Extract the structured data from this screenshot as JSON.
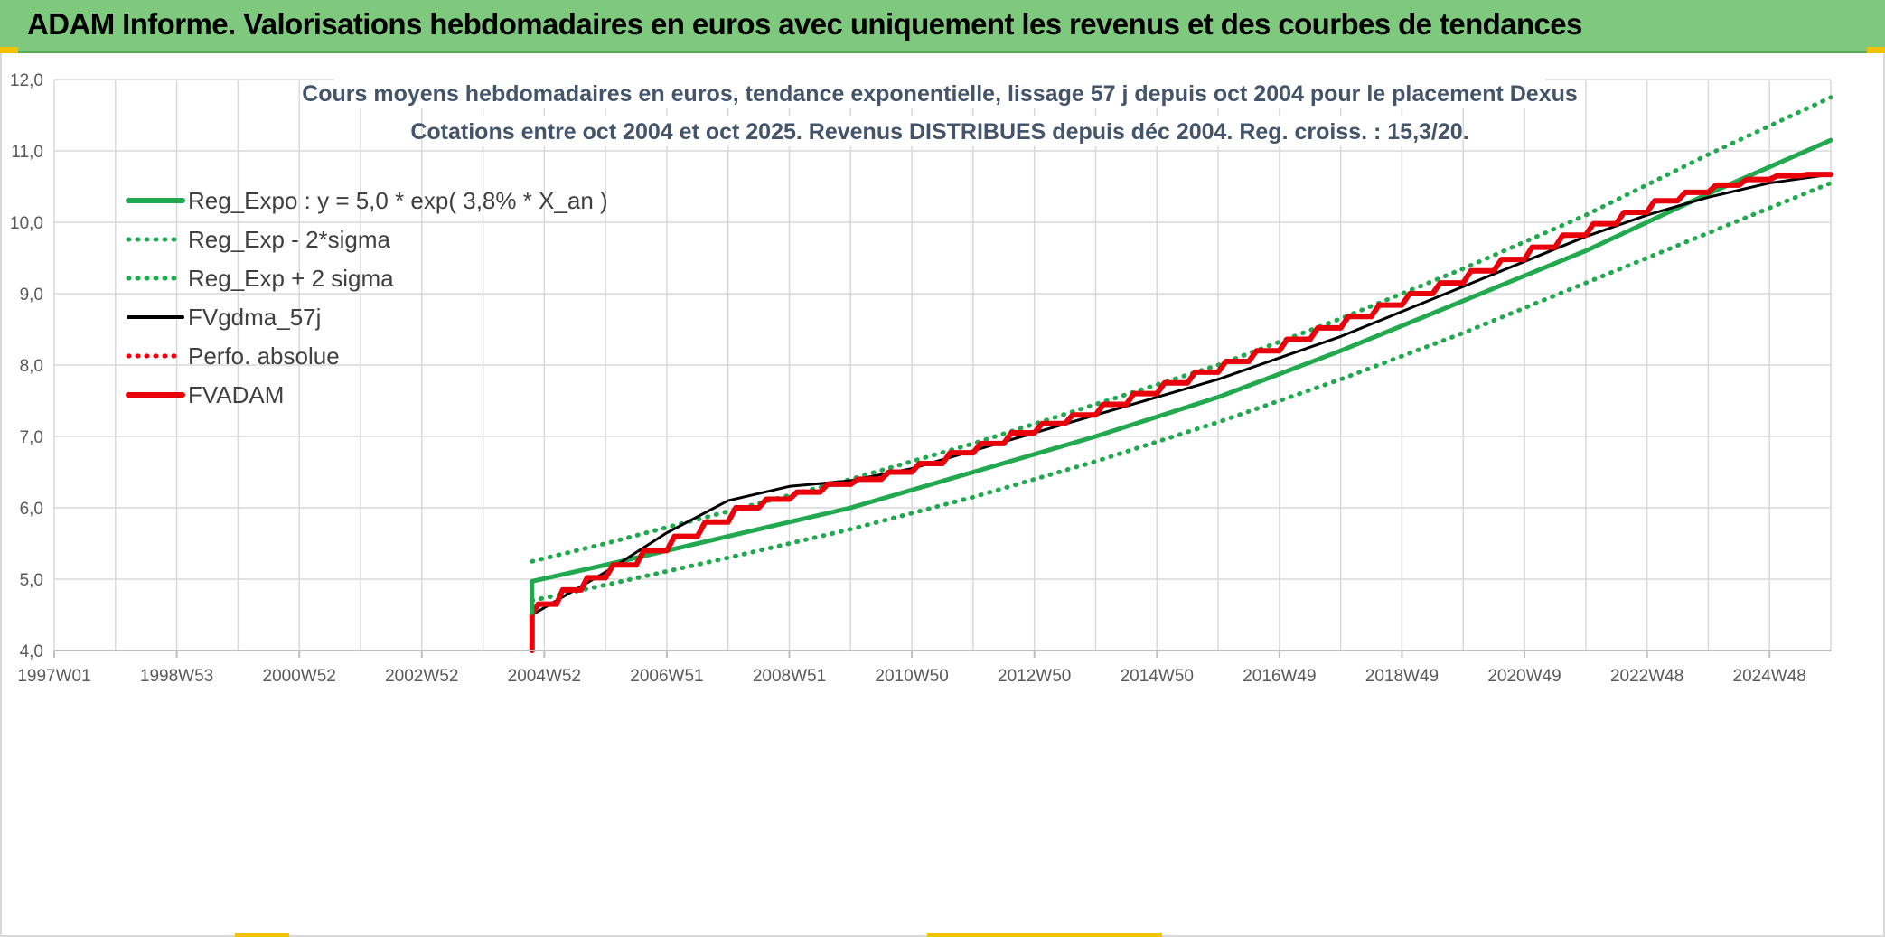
{
  "banner": {
    "title": "ADAM Informe. Valorisations hebdomadaires en euros avec uniquement les revenus et des courbes de tendances"
  },
  "colors": {
    "banner_bg": "#7fc97f",
    "reg_expo": "#22a84f",
    "fvgdma": "#000000",
    "fvadam": "#e8000b",
    "perfo": "#e8000b",
    "grid": "#d9d9d9",
    "title": "#44546a"
  },
  "chart_data": {
    "type": "line",
    "title_line1": "Cours moyens hebdomadaires en euros, tendance exponentielle, lissage 57 j depuis oct 2004 pour le placement Dexus",
    "title_line2": "Cotations entre oct 2004 et oct 2025. Revenus DISTRIBUES depuis déc 2004. Reg. croiss. : 15,3/20.",
    "xlabel": "",
    "ylabel": "",
    "ylim": [
      4.0,
      12.0
    ],
    "xlim": [
      1997.0,
      2026.0
    ],
    "y_ticks": [
      "4,0",
      "5,0",
      "6,0",
      "7,0",
      "8,0",
      "9,0",
      "10,0",
      "11,0",
      "12,0"
    ],
    "x_ticks": [
      "1997W01",
      "1998W53",
      "2000W52",
      "2002W52",
      "2004W52",
      "2006W51",
      "2008W51",
      "2010W50",
      "2012W50",
      "2014W50",
      "2016W49",
      "2018W49",
      "2020W49",
      "2022W48",
      "2024W48"
    ],
    "grid": true,
    "legend_position": "top-left",
    "series": [
      {
        "name": "Reg_Expo : y = 5,0 * exp( 3,8% *  X_an )",
        "style": "solid",
        "color": "#22a84f",
        "x": [
          2004.8,
          2006.0,
          2008.0,
          2010.0,
          2012.0,
          2014.0,
          2016.0,
          2018.0,
          2020.0,
          2022.0,
          2024.0,
          2026.0
        ],
        "y": [
          4.97,
          5.2,
          5.6,
          6.0,
          6.5,
          7.0,
          7.55,
          8.2,
          8.9,
          9.6,
          10.4,
          11.15
        ]
      },
      {
        "name": "Reg_Exp - 2*sigma",
        "style": "dotted",
        "color": "#22a84f",
        "x": [
          2004.8,
          2006.0,
          2008.0,
          2010.0,
          2012.0,
          2014.0,
          2016.0,
          2018.0,
          2020.0,
          2022.0,
          2024.0,
          2026.0
        ],
        "y": [
          4.7,
          4.92,
          5.3,
          5.7,
          6.15,
          6.65,
          7.2,
          7.8,
          8.45,
          9.15,
          9.85,
          10.55
        ]
      },
      {
        "name": "Reg_Exp + 2 sigma",
        "style": "dotted",
        "color": "#22a84f",
        "x": [
          2004.8,
          2006.0,
          2008.0,
          2010.0,
          2012.0,
          2014.0,
          2016.0,
          2018.0,
          2020.0,
          2022.0,
          2024.0,
          2026.0
        ],
        "y": [
          5.25,
          5.5,
          5.95,
          6.4,
          6.9,
          7.45,
          8.0,
          8.65,
          9.35,
          10.1,
          10.95,
          11.75
        ]
      },
      {
        "name": "FVgdma_57j",
        "style": "solid",
        "color": "#000000",
        "x": [
          2004.8,
          2005.5,
          2006.0,
          2007.0,
          2008.0,
          2009.0,
          2010.0,
          2011.0,
          2012.0,
          2013.0,
          2014.0,
          2015.0,
          2016.0,
          2017.0,
          2018.0,
          2019.0,
          2020.0,
          2021.0,
          2022.0,
          2023.0,
          2024.0,
          2025.0,
          2026.0
        ],
        "y": [
          4.5,
          4.85,
          5.1,
          5.65,
          6.1,
          6.3,
          6.38,
          6.55,
          6.8,
          7.05,
          7.3,
          7.55,
          7.8,
          8.1,
          8.4,
          8.75,
          9.1,
          9.45,
          9.8,
          10.1,
          10.35,
          10.55,
          10.67
        ]
      },
      {
        "name": "Perfo. absolue",
        "style": "dotted",
        "color": "#e8000b",
        "x": [],
        "y": []
      },
      {
        "name": "FVADAM",
        "style": "solid",
        "color": "#e8000b",
        "x": [
          2004.8,
          2004.8,
          2005.2,
          2005.6,
          2006.0,
          2006.5,
          2007.0,
          2007.5,
          2008.0,
          2008.5,
          2009.0,
          2009.5,
          2010.0,
          2010.5,
          2011.0,
          2011.5,
          2012.0,
          2012.5,
          2013.0,
          2013.5,
          2014.0,
          2014.5,
          2015.0,
          2015.5,
          2016.0,
          2016.5,
          2017.0,
          2017.5,
          2018.0,
          2018.5,
          2019.0,
          2019.5,
          2020.0,
          2020.5,
          2021.0,
          2021.5,
          2022.0,
          2022.5,
          2023.0,
          2023.5,
          2024.0,
          2024.5,
          2025.0,
          2025.5,
          2026.0
        ],
        "y": [
          4.0,
          4.5,
          4.65,
          4.85,
          5.02,
          5.2,
          5.4,
          5.6,
          5.8,
          6.0,
          6.12,
          6.22,
          6.33,
          6.4,
          6.5,
          6.62,
          6.77,
          6.9,
          7.05,
          7.18,
          7.3,
          7.45,
          7.6,
          7.75,
          7.9,
          8.05,
          8.2,
          8.36,
          8.52,
          8.68,
          8.84,
          9.0,
          9.15,
          9.32,
          9.48,
          9.65,
          9.82,
          9.98,
          10.14,
          10.3,
          10.42,
          10.52,
          10.6,
          10.65,
          10.67
        ]
      }
    ]
  }
}
